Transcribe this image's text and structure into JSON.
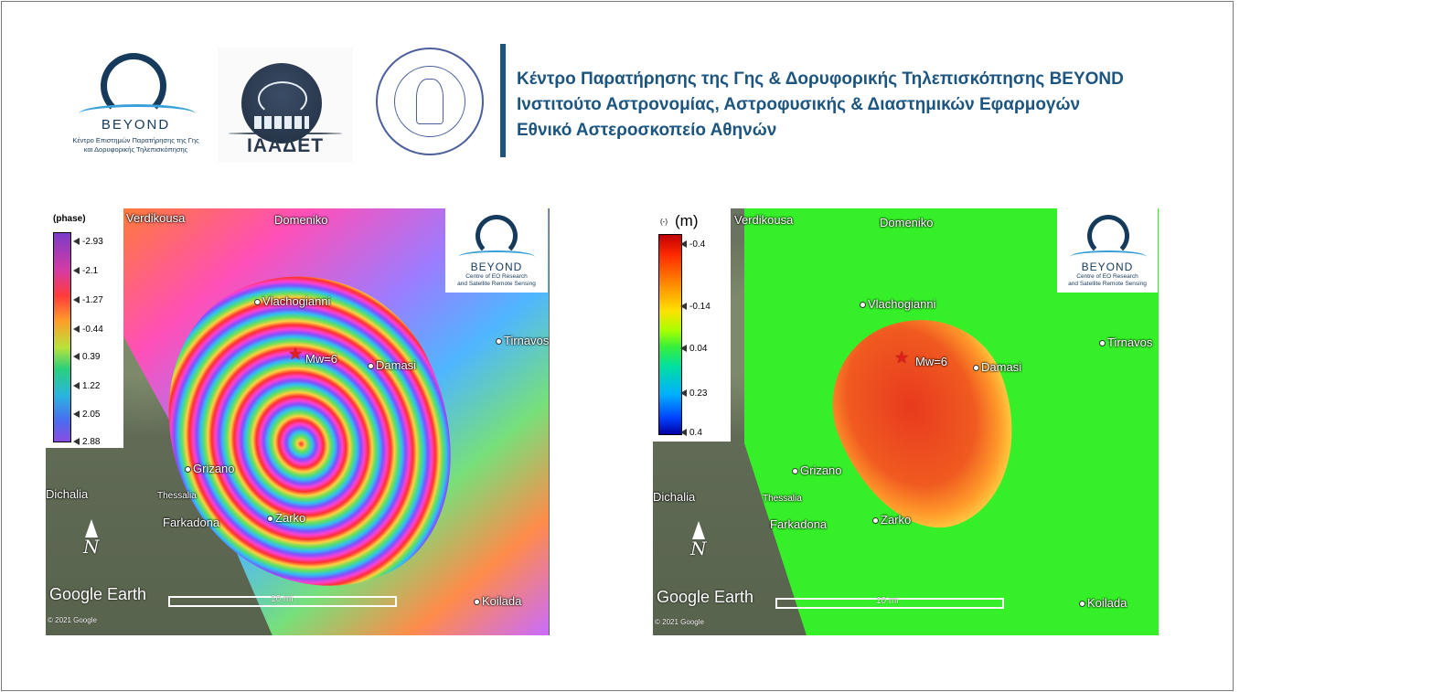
{
  "header": {
    "beyond_logo": {
      "name": "BEYOND",
      "subtitle_line1": "Κέντρο Επιστημών Παρατήρησης της Γης",
      "subtitle_line2": "και Δορυφορικής Τηλεπισκόπησης"
    },
    "iaadet_logo": {
      "name": "ΙΑΑΔΕΤ"
    },
    "noa_seal": {
      "icon": "observatory-seal"
    },
    "institutions": [
      "Κέντρο Παρατήρησης της Γης & Δορυφορικής Τηλεπισκόπησης BEYOND",
      "Ινστιτούτο Αστρονομίας, Αστροφυσικής & Διαστημικών Εφαρμογών",
      "Εθνικό Αστεροσκοπείο Αθηνών"
    ],
    "accent_color": "#1c5580"
  },
  "left_map": {
    "legend": {
      "title": "(phase)",
      "ticks": [
        "-2.93",
        "-2.1",
        "-1.27",
        "-0.44",
        "0.39",
        "1.22",
        "2.05",
        "2.88"
      ]
    },
    "inset_logo": {
      "name": "BEYOND",
      "sub1": "Centre of EO Research",
      "sub2": "and Satellite Remote Sensing"
    },
    "places": {
      "verdikousa": "Verdikousa",
      "domeniko": "Domeniko",
      "vlachogianni": "Vlachogianni",
      "damasi": "Damasi",
      "tirnavos": "Tirnavos",
      "grizano": "Grizano",
      "dichalia": "Dichalia",
      "thessalia": "Thessalia",
      "farkadona": "Farkadona",
      "zarko": "Zarko",
      "koilada": "Koilada"
    },
    "epicenter_label": "Mw=6",
    "north_label": "N",
    "google_earth": "Google Earth",
    "copyright": "© 2021 Google",
    "scale_label": "10 mi"
  },
  "right_map": {
    "legend": {
      "title_small": "(-)",
      "title_unit": "(m)",
      "ticks": [
        "-0.4",
        "-0.14",
        "0.04",
        "0.23",
        "0.4"
      ]
    },
    "inset_logo": {
      "name": "BEYOND",
      "sub1": "Centre of EO Research",
      "sub2": "and Satellite Remote Sensing"
    },
    "places": {
      "verdikousa": "Verdikousa",
      "domeniko": "Domeniko",
      "vlachogianni": "Vlachogianni",
      "damasi": "Damasi",
      "tirnavos": "Tirnavos",
      "grizano": "Grizano",
      "dichalia": "Dichalia",
      "thessalia": "Thessalia",
      "farkadona": "Farkadona",
      "zarko": "Zarko",
      "koilada": "Koilada"
    },
    "epicenter_label": "Mw=6",
    "north_label": "N",
    "google_earth": "Google Earth",
    "copyright": "© 2021 Google",
    "scale_label": "10 mi"
  }
}
